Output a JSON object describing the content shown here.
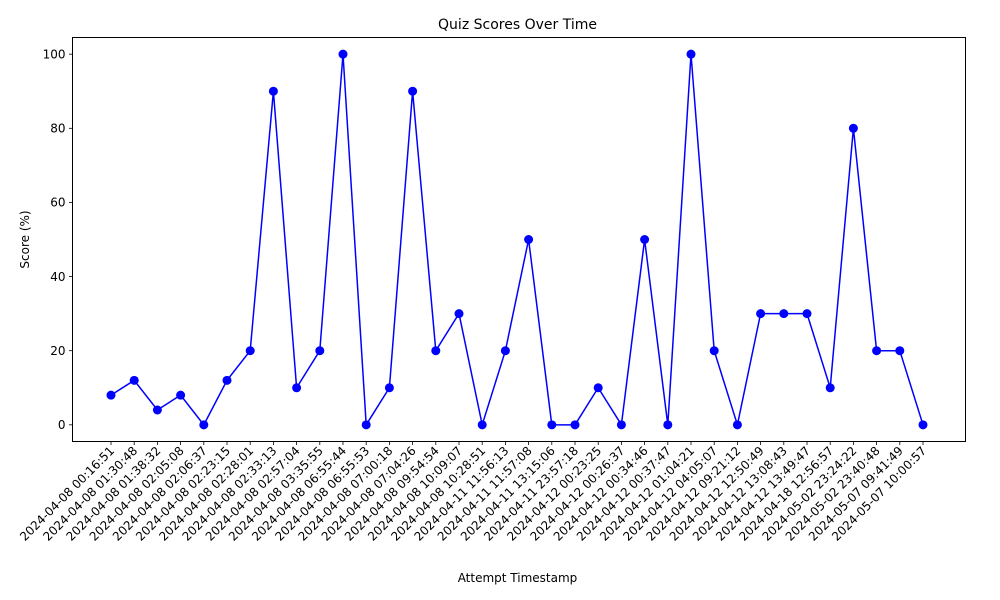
{
  "chart_data": {
    "type": "line",
    "title": "Quiz Scores Over Time",
    "xlabel": "Attempt Timestamp",
    "ylabel": "Score (%)",
    "ylim": [
      -4.5,
      104.5
    ],
    "yticks": [
      0,
      20,
      40,
      60,
      80,
      100
    ],
    "grid": false,
    "line_color": "#0000ff",
    "marker_color": "#0000ff",
    "categories": [
      "2024-04-08 00:16:51",
      "2024-04-08 01:30:48",
      "2024-04-08 01:38:32",
      "2024-04-08 02:05:08",
      "2024-04-08 02:06:37",
      "2024-04-08 02:23:15",
      "2024-04-08 02:28:01",
      "2024-04-08 02:33:13",
      "2024-04-08 02:57:04",
      "2024-04-08 03:35:55",
      "2024-04-08 06:55:44",
      "2024-04-08 06:55:53",
      "2024-04-08 07:00:18",
      "2024-04-08 07:04:26",
      "2024-04-08 09:54:54",
      "2024-04-08 10:09:07",
      "2024-04-08 10:28:51",
      "2024-04-11 11:56:13",
      "2024-04-11 11:57:08",
      "2024-04-11 13:15:06",
      "2024-04-11 23:57:18",
      "2024-04-12 00:23:25",
      "2024-04-12 00:26:37",
      "2024-04-12 00:34:46",
      "2024-04-12 00:37:47",
      "2024-04-12 01:04:21",
      "2024-04-12 04:05:07",
      "2024-04-12 09:21:12",
      "2024-04-12 12:50:49",
      "2024-04-12 13:08:43",
      "2024-04-12 13:49:47",
      "2024-04-18 12:56:57",
      "2024-05-02 23:24:22",
      "2024-05-02 23:40:48",
      "2024-05-07 09:41:49",
      "2024-05-07 10:00:57"
    ],
    "values": [
      8,
      12,
      4,
      8,
      0,
      12,
      20,
      90,
      10,
      20,
      100,
      0,
      10,
      90,
      20,
      30,
      0,
      20,
      50,
      0,
      0,
      10,
      0,
      50,
      0,
      100,
      20,
      0,
      30,
      30,
      30,
      10,
      80,
      20,
      20,
      0
    ]
  }
}
